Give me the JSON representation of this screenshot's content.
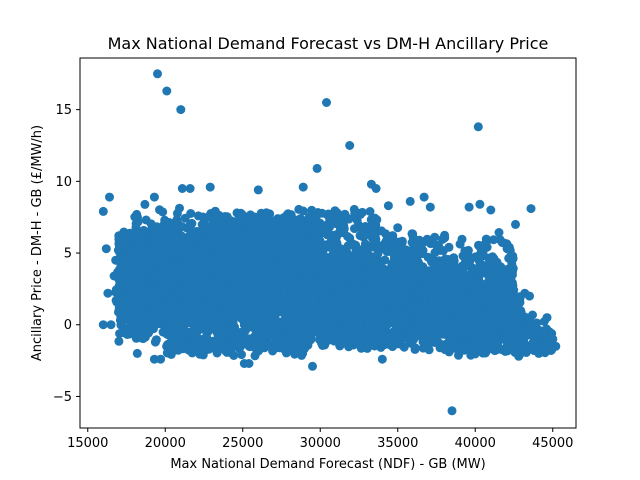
{
  "chart_data": {
    "type": "scatter",
    "title": "Max National Demand Forecast vs DM-H Ancillary Price",
    "xlabel": "Max National Demand Forecast (NDF) - GB (MW)",
    "ylabel": "Ancillary Price - DM-H - GB (£/MW/h)",
    "xlim": [
      14500,
      46500
    ],
    "ylim": [
      -7.2,
      18.6
    ],
    "xticks": [
      15000,
      20000,
      25000,
      30000,
      35000,
      40000,
      45000
    ],
    "yticks": [
      -5,
      0,
      5,
      10,
      15
    ],
    "grid": false,
    "marker_color": "#1f77b4",
    "outliers": [
      {
        "x": 19500,
        "y": 17.5
      },
      {
        "x": 20100,
        "y": 16.3
      },
      {
        "x": 21000,
        "y": 15.0
      },
      {
        "x": 30400,
        "y": 15.5
      },
      {
        "x": 40200,
        "y": 13.8
      },
      {
        "x": 31900,
        "y": 12.5
      },
      {
        "x": 29800,
        "y": 10.9
      },
      {
        "x": 33300,
        "y": 9.8
      },
      {
        "x": 33600,
        "y": 9.5
      },
      {
        "x": 28900,
        "y": 9.6
      },
      {
        "x": 22900,
        "y": 9.6
      },
      {
        "x": 21100,
        "y": 9.5
      },
      {
        "x": 21600,
        "y": 9.5
      },
      {
        "x": 26000,
        "y": 9.4
      },
      {
        "x": 16400,
        "y": 8.9
      },
      {
        "x": 19300,
        "y": 8.9
      },
      {
        "x": 36700,
        "y": 8.9
      },
      {
        "x": 34400,
        "y": 8.3
      },
      {
        "x": 35800,
        "y": 8.6
      },
      {
        "x": 37100,
        "y": 8.2
      },
      {
        "x": 40300,
        "y": 8.4
      },
      {
        "x": 39600,
        "y": 8.2
      },
      {
        "x": 41000,
        "y": 8.0
      },
      {
        "x": 43600,
        "y": 8.1
      },
      {
        "x": 16000,
        "y": 7.9
      },
      {
        "x": 42600,
        "y": 7.0
      },
      {
        "x": 16200,
        "y": 5.3
      },
      {
        "x": 16300,
        "y": 2.2
      },
      {
        "x": 16000,
        "y": 0.0
      },
      {
        "x": 16500,
        "y": 0.0
      },
      {
        "x": 19300,
        "y": -2.4
      },
      {
        "x": 19700,
        "y": -2.4
      },
      {
        "x": 18200,
        "y": -2.0
      },
      {
        "x": 25100,
        "y": -2.7
      },
      {
        "x": 25400,
        "y": -2.7
      },
      {
        "x": 29500,
        "y": -2.9
      },
      {
        "x": 34000,
        "y": -2.4
      },
      {
        "x": 38500,
        "y": -6.0
      },
      {
        "x": 43200,
        "y": 2.2
      },
      {
        "x": 43500,
        "y": 2.0
      },
      {
        "x": 45000,
        "y": -1.0
      },
      {
        "x": 45200,
        "y": -1.5
      },
      {
        "x": 44500,
        "y": -1.6
      },
      {
        "x": 43800,
        "y": -1.8
      },
      {
        "x": 44100,
        "y": -2.0
      },
      {
        "x": 42800,
        "y": -2.2
      },
      {
        "x": 43000,
        "y": -1.3
      },
      {
        "x": 40500,
        "y": 3.6
      },
      {
        "x": 41200,
        "y": 2.0
      },
      {
        "x": 17000,
        "y": 6.2
      },
      {
        "x": 16800,
        "y": 4.5
      },
      {
        "x": 16700,
        "y": 3.4
      }
    ],
    "clusters": [
      {
        "x": [
          17000,
          30000
        ],
        "y": [
          -1.5,
          7.5
        ],
        "n": 2600
      },
      {
        "x": [
          18000,
          29000
        ],
        "y": [
          -1.0,
          8.5
        ],
        "n": 600
      },
      {
        "x": [
          17500,
          26000
        ],
        "y": [
          1.0,
          6.5
        ],
        "n": 800
      },
      {
        "x": [
          29000,
          36000
        ],
        "y": [
          -1.8,
          7.0
        ],
        "n": 900
      },
      {
        "x": [
          30000,
          38000
        ],
        "y": [
          -2.0,
          4.5
        ],
        "n": 900
      },
      {
        "x": [
          36000,
          42500
        ],
        "y": [
          -2.2,
          6.5
        ],
        "n": 700
      },
      {
        "x": [
          38000,
          43000
        ],
        "y": [
          -2.2,
          2.5
        ],
        "n": 500
      },
      {
        "x": [
          42000,
          45000
        ],
        "y": [
          -2.3,
          0.8
        ],
        "n": 120
      },
      {
        "x": [
          16800,
          18500
        ],
        "y": [
          -1.0,
          7.0
        ],
        "n": 90
      },
      {
        "x": [
          23000,
          34000
        ],
        "y": [
          6.0,
          8.3
        ],
        "n": 160
      },
      {
        "x": [
          20000,
          29000
        ],
        "y": [
          -2.2,
          -0.5
        ],
        "n": 200
      }
    ]
  }
}
